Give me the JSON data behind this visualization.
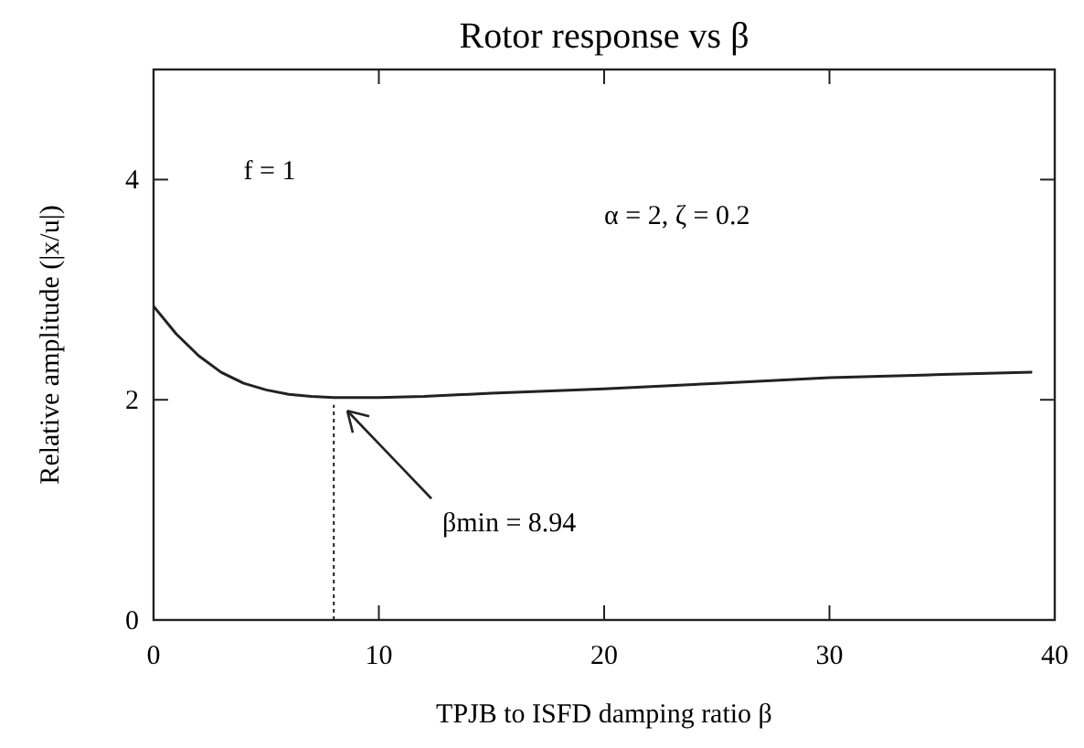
{
  "chart_data": {
    "type": "line",
    "title": "Rotor response vs β",
    "xlabel": "TPJB to ISFD damping ratio β",
    "ylabel": "Relative amplitude (|x/u|)",
    "x": [
      0,
      1,
      2,
      3,
      4,
      5,
      6,
      7,
      8,
      10,
      12,
      15,
      20,
      25,
      30,
      35,
      39
    ],
    "series": [
      {
        "color": "#222222",
        "values": [
          2.85,
          2.6,
          2.4,
          2.25,
          2.15,
          2.09,
          2.05,
          2.03,
          2.02,
          2.02,
          2.03,
          2.06,
          2.1,
          2.15,
          2.2,
          2.23,
          2.25
        ]
      }
    ],
    "xlim": [
      0,
      40
    ],
    "xticks": [
      0,
      10,
      20,
      30,
      40
    ],
    "ylim": [
      0,
      5
    ],
    "yticks": [
      0,
      2,
      4
    ],
    "ref_lines": [
      {
        "axis": "x",
        "value": 8,
        "line_style": "dotted"
      }
    ],
    "annotations": [
      "f = 1",
      "α = 2,    ζ = 0.2",
      "βmin = 8.94"
    ],
    "grid": false
  }
}
